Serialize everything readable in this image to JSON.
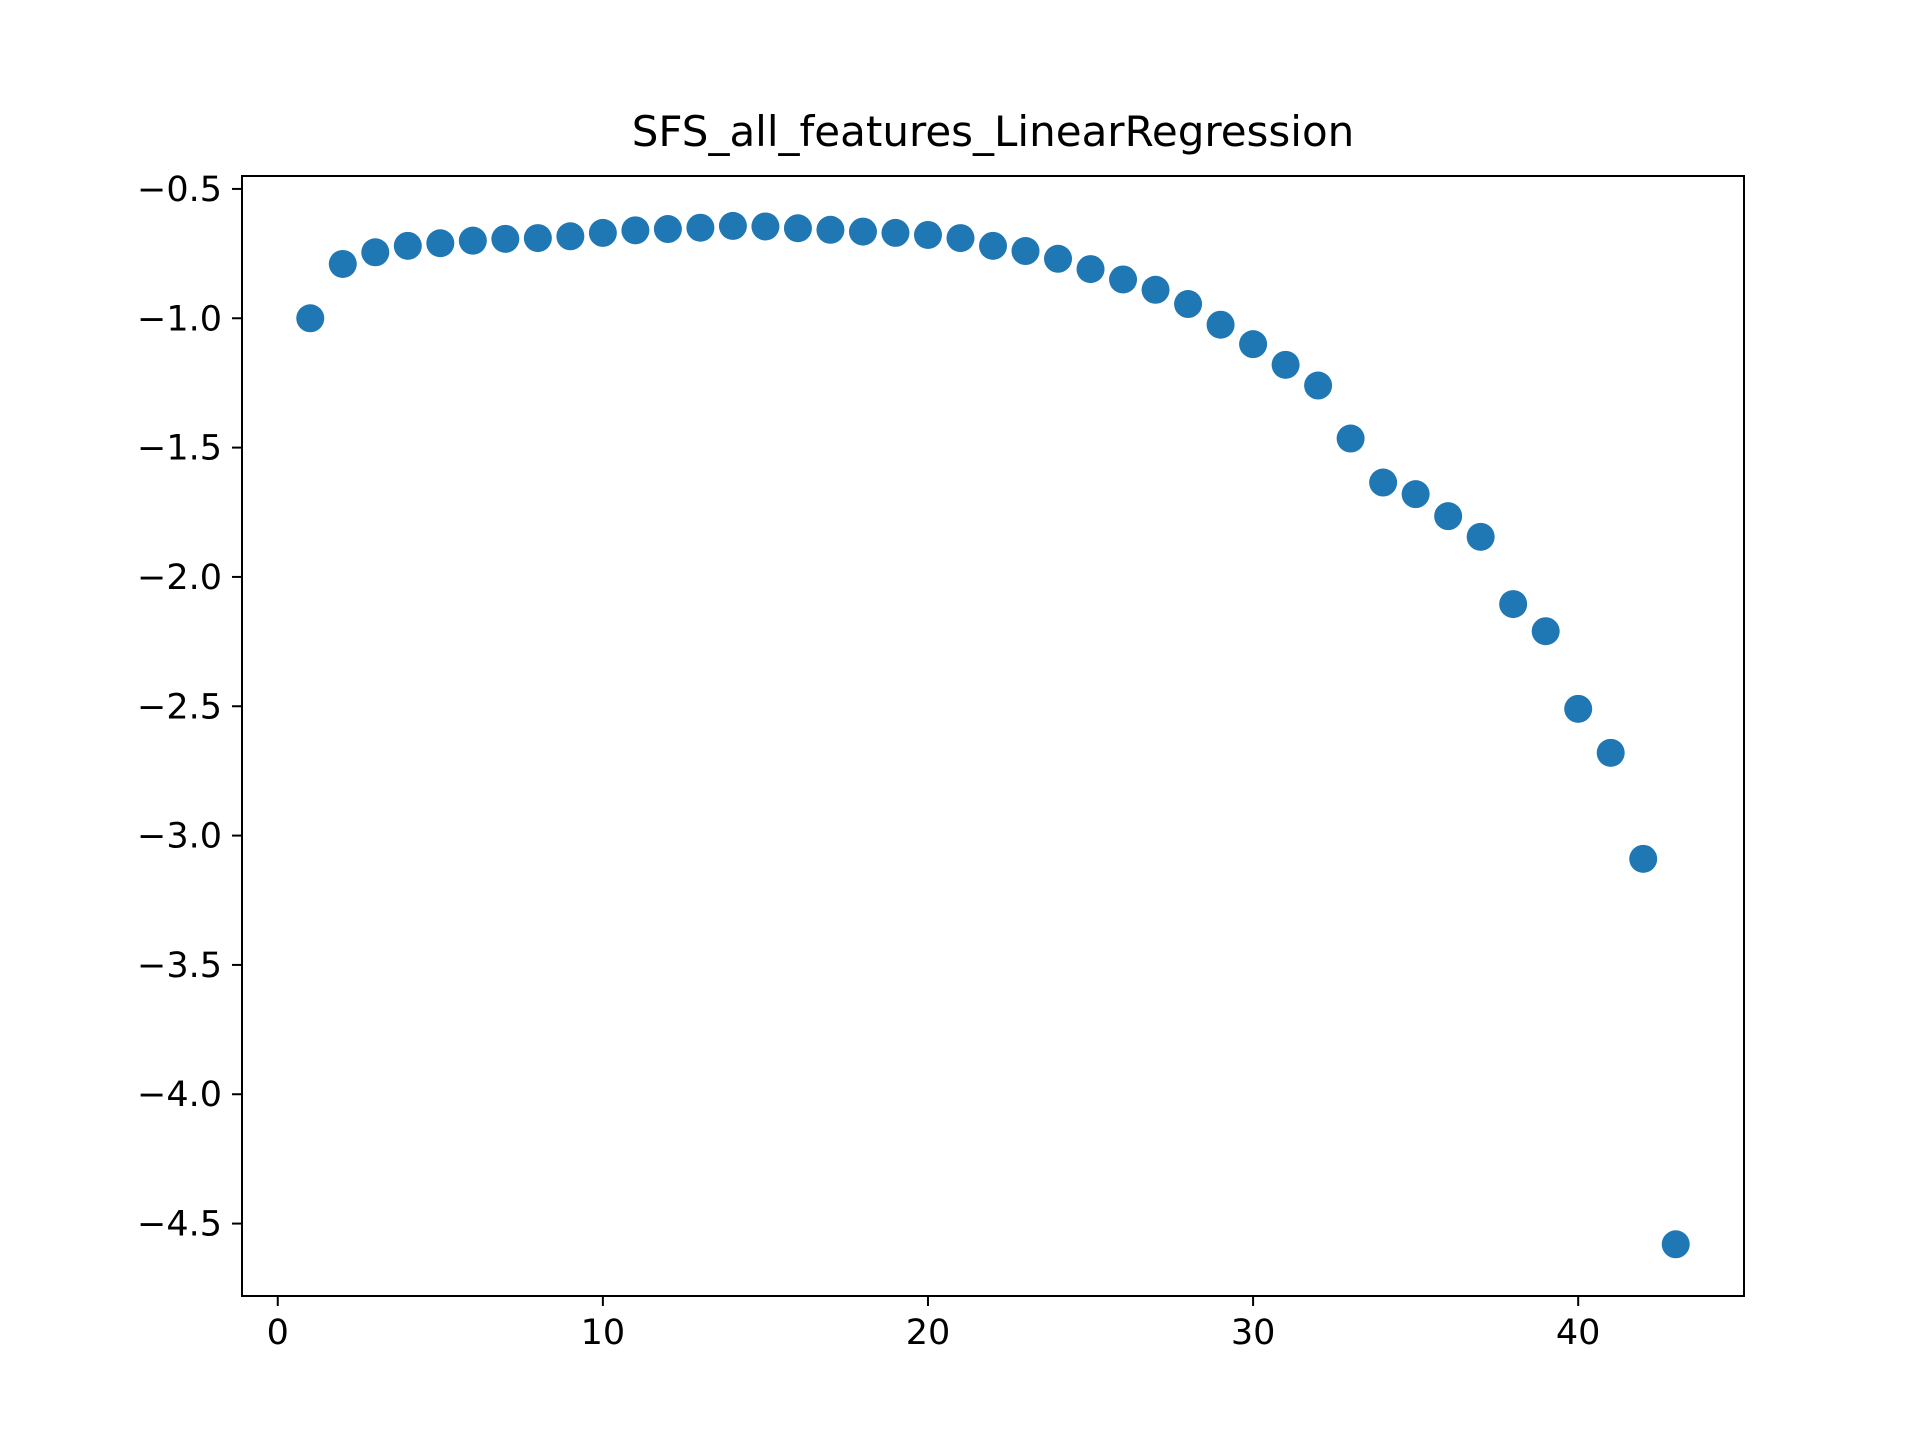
{
  "chart_data": {
    "type": "scatter",
    "title": "SFS_all_features_LinearRegression",
    "xlabel": "",
    "ylabel": "",
    "xlim": [
      -1.1,
      45.1
    ],
    "ylim": [
      -4.78,
      -0.45
    ],
    "xticks": [
      0,
      10,
      20,
      30,
      40
    ],
    "xtick_labels": [
      "0",
      "10",
      "20",
      "30",
      "40"
    ],
    "yticks": [
      -0.5,
      -1.0,
      -1.5,
      -2.0,
      -2.5,
      -3.0,
      -3.5,
      -4.0,
      -4.5
    ],
    "ytick_labels": [
      "−0.5",
      "−1.0",
      "−1.5",
      "−2.0",
      "−2.5",
      "−3.0",
      "−3.5",
      "−4.0",
      "−4.5"
    ],
    "grid": false,
    "marker_color": "#1f77b4",
    "series": [
      {
        "x": [
          1,
          2,
          3,
          4,
          5,
          6,
          7,
          8,
          9,
          10,
          11,
          12,
          13,
          14,
          15,
          16,
          17,
          18,
          19,
          20,
          21,
          22,
          23,
          24,
          25,
          26,
          27,
          28,
          29,
          30,
          31,
          32,
          33,
          34,
          35,
          36,
          37,
          38,
          39,
          40,
          41,
          42,
          43
        ],
        "values": [
          -1.0,
          -0.79,
          -0.745,
          -0.72,
          -0.71,
          -0.7,
          -0.693,
          -0.69,
          -0.683,
          -0.67,
          -0.66,
          -0.655,
          -0.65,
          -0.643,
          -0.645,
          -0.652,
          -0.658,
          -0.665,
          -0.67,
          -0.678,
          -0.69,
          -0.72,
          -0.74,
          -0.77,
          -0.81,
          -0.85,
          -0.89,
          -0.945,
          -1.025,
          -1.1,
          -1.18,
          -1.26,
          -1.465,
          -1.635,
          -1.68,
          -1.765,
          -1.845,
          -2.105,
          -2.21,
          -2.51,
          -2.68,
          -3.09,
          -4.58
        ]
      }
    ]
  }
}
